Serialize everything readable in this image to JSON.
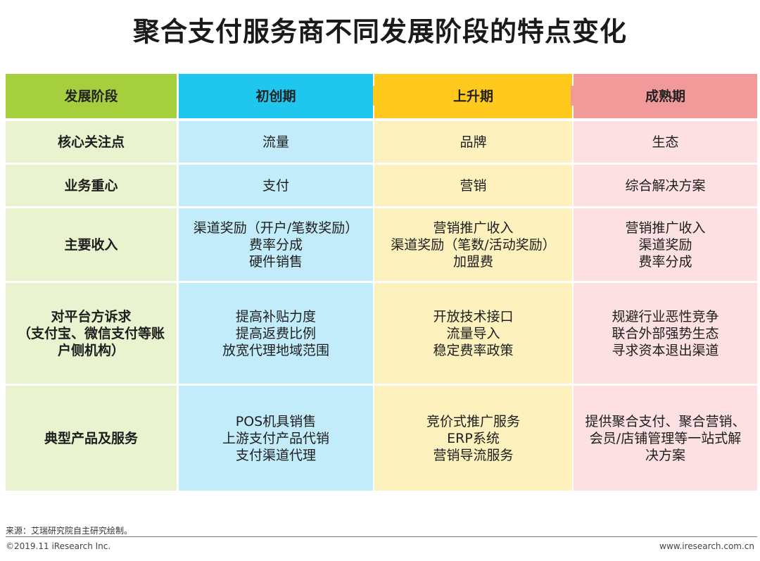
{
  "title": "聚合支付服务商不同发展阶段的特点变化",
  "colors": {
    "header_stage": "#a6cf3e",
    "header_initial": "#1fc6ee",
    "header_growth": "#ffc91e",
    "header_mature": "#f29a9a",
    "body_stage": "#e9f3cf",
    "body_initial": "#c2ecf9",
    "body_growth": "#fdf1bd",
    "body_mature": "#fde0e1"
  },
  "table": {
    "headers": [
      "发展阶段",
      "初创期",
      "上升期",
      "成熟期"
    ],
    "rows": [
      {
        "label": [
          "核心关注点"
        ],
        "cells": [
          [
            "流量"
          ],
          [
            "品牌"
          ],
          [
            "生态"
          ]
        ]
      },
      {
        "label": [
          "业务重心"
        ],
        "cells": [
          [
            "支付"
          ],
          [
            "营销"
          ],
          [
            "综合解决方案"
          ]
        ]
      },
      {
        "label": [
          "主要收入"
        ],
        "cells": [
          [
            "渠道奖励（开户/笔数奖励）",
            "费率分成",
            "硬件销售"
          ],
          [
            "营销推广收入",
            "渠道奖励（笔数/活动奖励）",
            "加盟费"
          ],
          [
            "营销推广收入",
            "渠道奖励",
            "费率分成"
          ]
        ]
      },
      {
        "label": [
          "对平台方诉求",
          "（支付宝、微信支付等账",
          "户侧机构）"
        ],
        "cells": [
          [
            "提高补贴力度",
            "提高返费比例",
            "放宽代理地域范围"
          ],
          [
            "开放技术接口",
            "流量导入",
            "稳定费率政策"
          ],
          [
            "规避行业恶性竞争",
            "联合外部强势生态",
            "寻求资本退出渠道"
          ]
        ]
      },
      {
        "label": [
          "典型产品及服务"
        ],
        "cells": [
          [
            "POS机具销售",
            "上游支付产品代销",
            "支付渠道代理"
          ],
          [
            "竞价式推广服务",
            "ERP系统",
            "营销导流服务"
          ],
          [
            "提供聚合支付、聚合营销、",
            "会员/店铺管理等一站式解",
            "决方案"
          ]
        ]
      }
    ]
  },
  "footer": {
    "source": "来源：艾瑞研究院自主研究绘制。",
    "copyright": "©2019.11 iResearch Inc.",
    "website": "www.iresearch.com.cn"
  }
}
